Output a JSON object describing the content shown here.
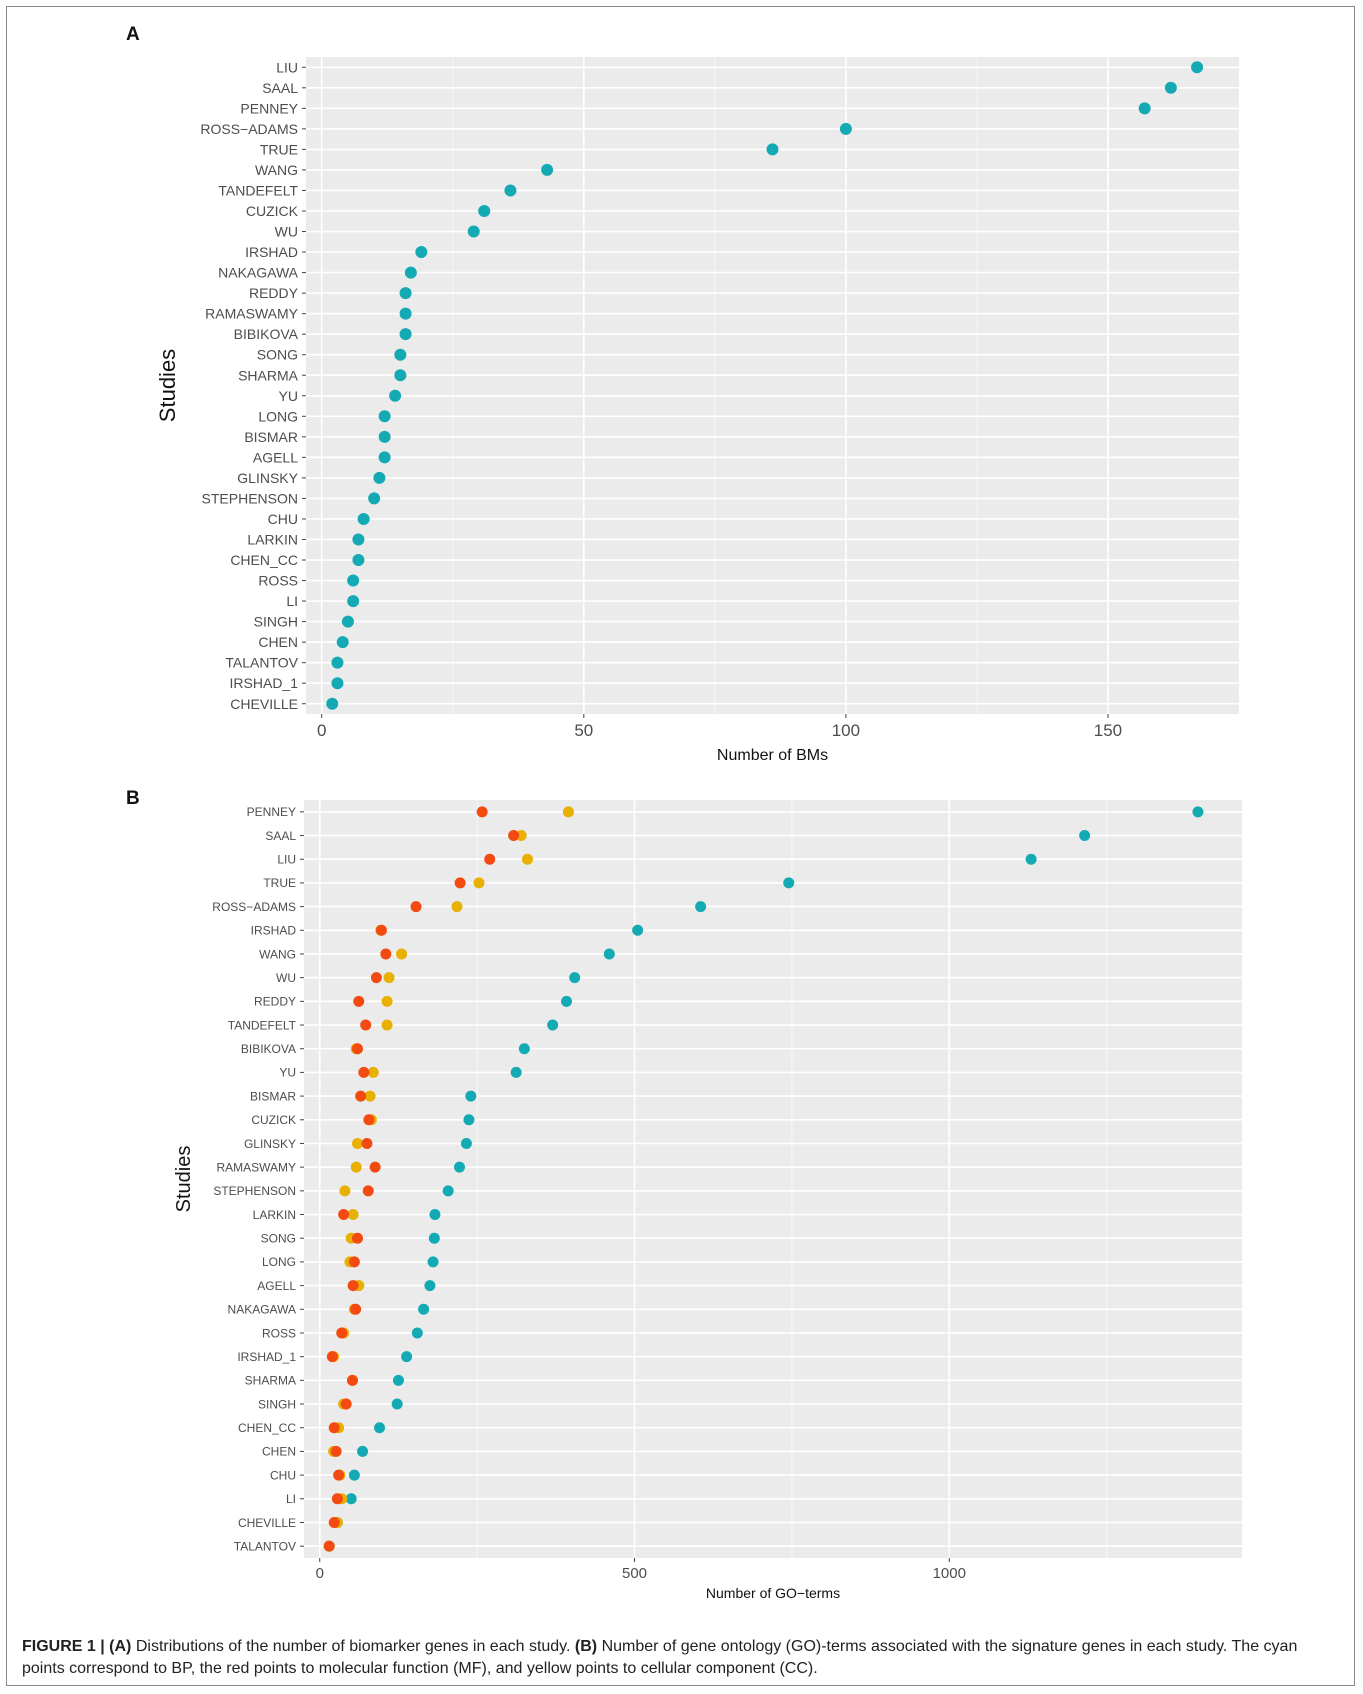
{
  "figure": {
    "caption": {
      "label": "FIGURE 1 |",
      "part_a_label": "(A)",
      "part_a_text": "Distributions of the number of biomarker genes in each study.",
      "part_b_label": "(B)",
      "part_b_text": "Number of gene ontology (GO)-terms associated with the signature genes in each study. The cyan points correspond to BP, the red points to molecular function (MF), and yellow points to cellular component (CC)."
    }
  },
  "chart_data": [
    {
      "panel": "A",
      "type": "scatter",
      "title": "",
      "xlabel": "Number of BMs",
      "ylabel": "Studies",
      "xlim": [
        -3,
        175
      ],
      "xticks": [
        0,
        50,
        100,
        150
      ],
      "grid": true,
      "categories": [
        "LIU",
        "SAAL",
        "PENNEY",
        "ROSS−ADAMS",
        "TRUE",
        "WANG",
        "TANDEFELT",
        "CUZICK",
        "WU",
        "IRSHAD",
        "NAKAGAWA",
        "REDDY",
        "RAMASWAMY",
        "BIBIKOVA",
        "SONG",
        "SHARMA",
        "YU",
        "LONG",
        "BISMAR",
        "AGELL",
        "GLINSKY",
        "STEPHENSON",
        "CHU",
        "LARKIN",
        "CHEN_CC",
        "ROSS",
        "LI",
        "SINGH",
        "CHEN",
        "TALANTOV",
        "IRSHAD_1",
        "CHEVILLE"
      ],
      "series": [
        {
          "color": "#14aab4",
          "values": [
            167,
            162,
            157,
            100,
            86,
            43,
            36,
            31,
            29,
            19,
            17,
            16,
            16,
            16,
            15,
            15,
            14,
            12,
            12,
            12,
            11,
            10,
            8,
            7,
            7,
            6,
            6,
            5,
            4,
            3,
            3,
            2
          ]
        }
      ]
    },
    {
      "panel": "B",
      "type": "scatter",
      "title": "",
      "xlabel": "Number of GO−terms",
      "ylabel": "Studies",
      "xlim": [
        -25,
        1465
      ],
      "xticks": [
        0,
        500,
        1000
      ],
      "grid": true,
      "categories": [
        "PENNEY",
        "SAAL",
        "LIU",
        "TRUE",
        "ROSS−ADAMS",
        "IRSHAD",
        "WANG",
        "WU",
        "REDDY",
        "TANDEFELT",
        "BIBIKOVA",
        "YU",
        "BISMAR",
        "CUZICK",
        "GLINSKY",
        "RAMASWAMY",
        "STEPHENSON",
        "LARKIN",
        "SONG",
        "LONG",
        "AGELL",
        "NAKAGAWA",
        "ROSS",
        "IRSHAD_1",
        "SHARMA",
        "SINGH",
        "CHEN_CC",
        "CHEN",
        "CHU",
        "LI",
        "CHEVILLE",
        "TALANTOV"
      ],
      "series": [
        {
          "color": "#14aab4",
          "values": [
            1395,
            1215,
            1130,
            745,
            605,
            505,
            460,
            405,
            392,
            370,
            325,
            312,
            240,
            237,
            233,
            222,
            204,
            183,
            182,
            180,
            175,
            165,
            155,
            138,
            125,
            123,
            95,
            68,
            55,
            50,
            28,
            15
          ]
        },
        {
          "color": "#e8b000",
          "values": [
            395,
            320,
            330,
            253,
            218,
            97,
            130,
            110,
            107,
            107,
            58,
            85,
            80,
            82,
            60,
            58,
            40,
            53,
            50,
            48,
            62,
            55,
            38,
            22,
            52,
            38,
            30,
            22,
            32,
            35,
            28,
            15
          ]
        },
        {
          "color": "#f24a10",
          "values": [
            258,
            308,
            270,
            223,
            153,
            98,
            105,
            90,
            62,
            73,
            60,
            70,
            65,
            78,
            75,
            88,
            77,
            38,
            60,
            55,
            53,
            57,
            35,
            20,
            52,
            42,
            23,
            26,
            30,
            28,
            23,
            15
          ]
        }
      ]
    }
  ]
}
